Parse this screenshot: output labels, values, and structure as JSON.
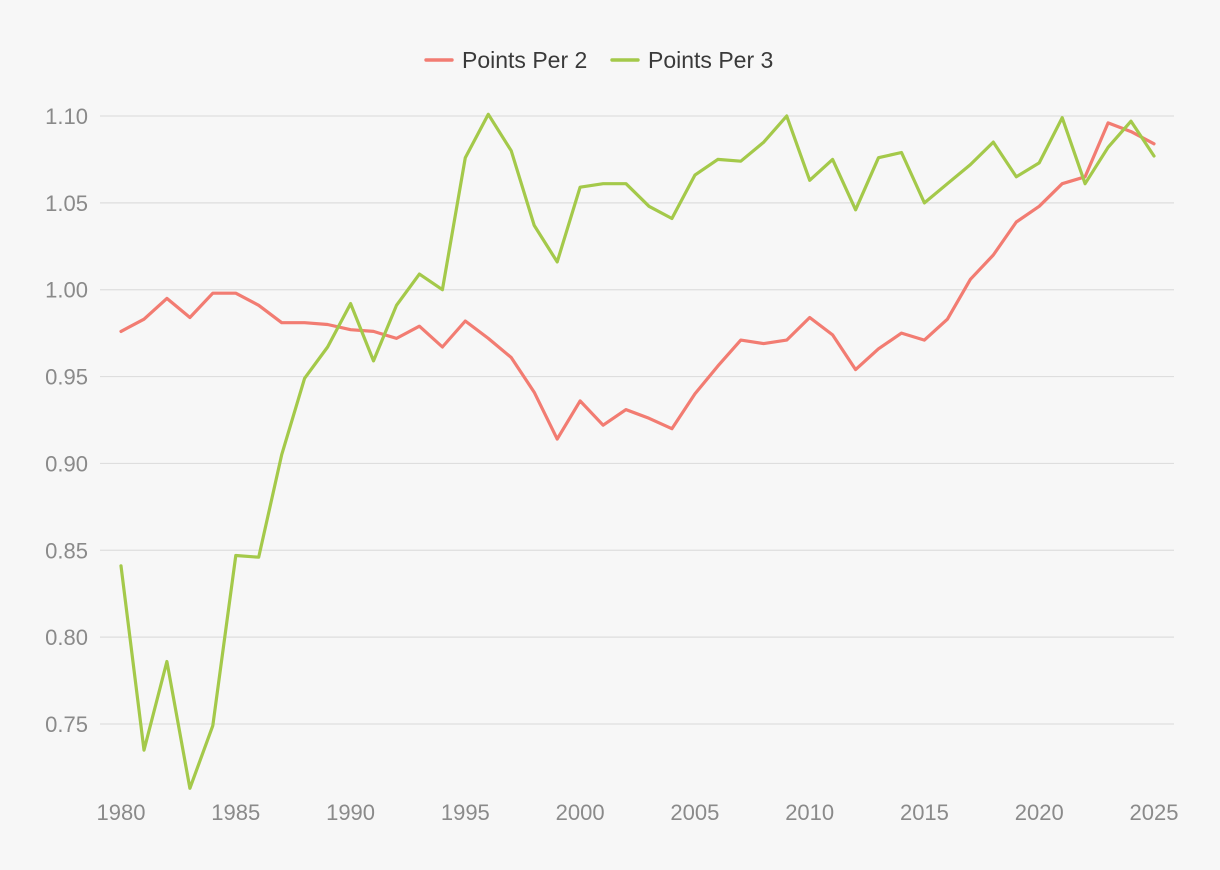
{
  "chart_data": {
    "type": "line",
    "title": "",
    "xlabel": "",
    "ylabel": "",
    "legend_position": "top-center",
    "grid": "horizontal",
    "xlim": [
      1980,
      2025
    ],
    "ylim": [
      0.71,
      1.11
    ],
    "x_ticks": [
      "1980",
      "1985",
      "1990",
      "1995",
      "2000",
      "2005",
      "2010",
      "2015",
      "2020",
      "2025"
    ],
    "y_ticks": [
      "0.75",
      "0.80",
      "0.85",
      "0.90",
      "0.95",
      "1.00",
      "1.05",
      "1.10"
    ],
    "x": [
      1980,
      1981,
      1982,
      1983,
      1984,
      1985,
      1986,
      1987,
      1988,
      1989,
      1990,
      1991,
      1992,
      1993,
      1994,
      1995,
      1996,
      1997,
      1998,
      1999,
      2000,
      2001,
      2002,
      2003,
      2004,
      2005,
      2006,
      2007,
      2008,
      2009,
      2010,
      2011,
      2012,
      2013,
      2014,
      2015,
      2016,
      2017,
      2018,
      2019,
      2020,
      2021,
      2022,
      2023,
      2024,
      2025
    ],
    "series": [
      {
        "name": "Points Per 2",
        "color": "#f27c72",
        "values": [
          0.976,
          0.983,
          0.995,
          0.984,
          0.998,
          0.998,
          0.991,
          0.981,
          0.981,
          0.98,
          0.977,
          0.976,
          0.972,
          0.979,
          0.967,
          0.982,
          0.972,
          0.961,
          0.941,
          0.914,
          0.936,
          0.922,
          0.931,
          0.926,
          0.92,
          0.94,
          0.956,
          0.971,
          0.969,
          0.971,
          0.984,
          0.974,
          0.954,
          0.966,
          0.975,
          0.971,
          0.983,
          1.006,
          1.02,
          1.039,
          1.048,
          1.061,
          1.065,
          1.096,
          1.091,
          1.084
        ]
      },
      {
        "name": "Points Per 3",
        "color": "#a4c94a",
        "values": [
          0.841,
          0.735,
          0.786,
          0.713,
          0.749,
          0.847,
          0.846,
          0.905,
          0.949,
          0.967,
          0.992,
          0.959,
          0.991,
          1.009,
          1.0,
          1.076,
          1.101,
          1.08,
          1.037,
          1.016,
          1.059,
          1.061,
          1.061,
          1.048,
          1.041,
          1.066,
          1.075,
          1.074,
          1.085,
          1.1,
          1.063,
          1.075,
          1.046,
          1.076,
          1.079,
          1.05,
          1.061,
          1.072,
          1.085,
          1.065,
          1.073,
          1.099,
          1.061,
          1.082,
          1.097,
          1.077
        ]
      }
    ]
  }
}
